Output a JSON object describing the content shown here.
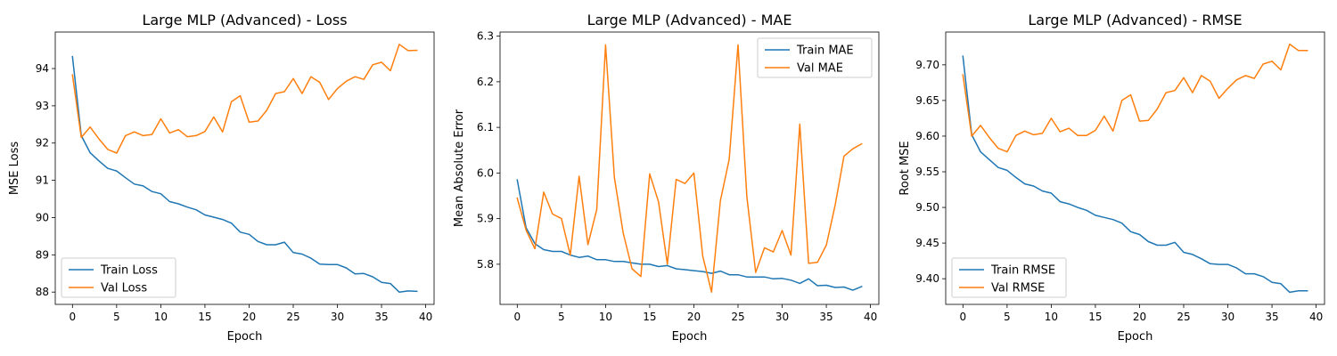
{
  "chart_data": [
    {
      "type": "line",
      "title": "Large MLP (Advanced) - Loss",
      "xlabel": "Epoch",
      "ylabel": "MSE Loss",
      "xlim": [
        -1.95,
        40.95
      ],
      "ylim": [
        87.67,
        94.98
      ],
      "xticks": [
        0,
        5,
        10,
        15,
        20,
        25,
        30,
        35,
        40
      ],
      "xtick_labels": [
        "0",
        "5",
        "10",
        "15",
        "20",
        "25",
        "30",
        "35",
        "40"
      ],
      "yticks": [
        88,
        89,
        90,
        91,
        92,
        93,
        94
      ],
      "ytick_labels": [
        "88",
        "89",
        "90",
        "91",
        "92",
        "93",
        "94"
      ],
      "grid": false,
      "legend_position": "lower-left",
      "colors": [
        "#1f77b4",
        "#ff7f0e"
      ],
      "x": [
        0,
        1,
        2,
        3,
        4,
        5,
        6,
        7,
        8,
        9,
        10,
        11,
        12,
        13,
        14,
        15,
        16,
        17,
        18,
        19,
        20,
        21,
        22,
        23,
        24,
        25,
        26,
        27,
        28,
        29,
        30,
        31,
        32,
        33,
        34,
        35,
        36,
        37,
        38,
        39
      ],
      "series": [
        {
          "name": "Train Loss",
          "values": [
            94.32,
            92.2,
            91.74,
            91.52,
            91.32,
            91.25,
            91.07,
            90.9,
            90.85,
            90.7,
            90.64,
            90.43,
            90.37,
            90.28,
            90.21,
            90.07,
            90.01,
            89.95,
            89.85,
            89.61,
            89.55,
            89.36,
            89.27,
            89.27,
            89.34,
            89.06,
            89.02,
            88.91,
            88.75,
            88.74,
            88.74,
            88.65,
            88.49,
            88.5,
            88.41,
            88.26,
            88.23,
            88.0,
            88.03,
            88.02
          ]
        },
        {
          "name": "Val Loss",
          "values": [
            93.83,
            92.15,
            92.43,
            92.11,
            91.83,
            91.73,
            92.2,
            92.3,
            92.2,
            92.23,
            92.65,
            92.27,
            92.36,
            92.17,
            92.2,
            92.31,
            92.7,
            92.3,
            93.11,
            93.27,
            92.56,
            92.59,
            92.88,
            93.33,
            93.38,
            93.73,
            93.33,
            93.78,
            93.63,
            93.17,
            93.46,
            93.66,
            93.78,
            93.71,
            94.1,
            94.17,
            93.94,
            94.65,
            94.48,
            94.49
          ]
        }
      ]
    },
    {
      "type": "line",
      "title": "Large MLP (Advanced) - MAE",
      "xlabel": "Epoch",
      "ylabel": "Mean Absolute Error",
      "xlim": [
        -1.95,
        40.95
      ],
      "ylim": [
        5.712,
        6.309
      ],
      "xticks": [
        0,
        5,
        10,
        15,
        20,
        25,
        30,
        35,
        40
      ],
      "xtick_labels": [
        "0",
        "5",
        "10",
        "15",
        "20",
        "25",
        "30",
        "35",
        "40"
      ],
      "yticks": [
        5.8,
        5.9,
        6.0,
        6.1,
        6.2,
        6.3
      ],
      "ytick_labels": [
        "5.8",
        "5.9",
        "6.0",
        "6.1",
        "6.2",
        "6.3"
      ],
      "grid": false,
      "legend_position": "top-right",
      "colors": [
        "#1f77b4",
        "#ff7f0e"
      ],
      "x": [
        0,
        1,
        2,
        3,
        4,
        5,
        6,
        7,
        8,
        9,
        10,
        11,
        12,
        13,
        14,
        15,
        16,
        17,
        18,
        19,
        20,
        21,
        22,
        23,
        24,
        25,
        26,
        27,
        28,
        29,
        30,
        31,
        32,
        33,
        34,
        35,
        36,
        37,
        38,
        39
      ],
      "series": [
        {
          "name": "Train MAE",
          "values": [
            5.985,
            5.88,
            5.845,
            5.832,
            5.828,
            5.828,
            5.82,
            5.815,
            5.818,
            5.81,
            5.81,
            5.806,
            5.806,
            5.803,
            5.8,
            5.8,
            5.795,
            5.797,
            5.79,
            5.788,
            5.786,
            5.784,
            5.78,
            5.785,
            5.777,
            5.777,
            5.772,
            5.772,
            5.772,
            5.768,
            5.769,
            5.765,
            5.758,
            5.768,
            5.753,
            5.754,
            5.749,
            5.75,
            5.743,
            5.751
          ]
        },
        {
          "name": "Val MAE",
          "values": [
            5.945,
            5.875,
            5.834,
            5.958,
            5.91,
            5.9,
            5.82,
            5.993,
            5.843,
            5.92,
            6.281,
            5.99,
            5.868,
            5.79,
            5.773,
            5.998,
            5.937,
            5.8,
            5.986,
            5.977,
            6.0,
            5.818,
            5.739,
            5.939,
            6.03,
            6.281,
            5.948,
            5.782,
            5.836,
            5.827,
            5.874,
            5.82,
            6.107,
            5.802,
            5.804,
            5.842,
            5.93,
            6.037,
            6.053,
            6.064
          ]
        }
      ]
    },
    {
      "type": "line",
      "title": "Large MLP (Advanced) - RMSE",
      "xlabel": "Epoch",
      "ylabel": "Root MSE",
      "xlim": [
        -1.95,
        40.95
      ],
      "ylim": [
        9.364,
        9.746
      ],
      "xticks": [
        0,
        5,
        10,
        15,
        20,
        25,
        30,
        35,
        40
      ],
      "xtick_labels": [
        "0",
        "5",
        "10",
        "15",
        "20",
        "25",
        "30",
        "35",
        "40"
      ],
      "yticks": [
        9.4,
        9.45,
        9.5,
        9.55,
        9.6,
        9.65,
        9.7
      ],
      "ytick_labels": [
        "9.40",
        "9.45",
        "9.50",
        "9.55",
        "9.60",
        "9.65",
        "9.70"
      ],
      "grid": false,
      "legend_position": "lower-left",
      "colors": [
        "#1f77b4",
        "#ff7f0e"
      ],
      "x": [
        0,
        1,
        2,
        3,
        4,
        5,
        6,
        7,
        8,
        9,
        10,
        11,
        12,
        13,
        14,
        15,
        16,
        17,
        18,
        19,
        20,
        21,
        22,
        23,
        24,
        25,
        26,
        27,
        28,
        29,
        30,
        31,
        32,
        33,
        34,
        35,
        36,
        37,
        38,
        39
      ],
      "series": [
        {
          "name": "Train RMSE",
          "values": [
            9.712,
            9.602,
            9.578,
            9.567,
            9.556,
            9.552,
            9.542,
            9.533,
            9.53,
            9.523,
            9.52,
            9.508,
            9.505,
            9.5,
            9.496,
            9.489,
            9.486,
            9.483,
            9.478,
            9.466,
            9.462,
            9.452,
            9.447,
            9.447,
            9.451,
            9.437,
            9.434,
            9.428,
            9.421,
            9.42,
            9.42,
            9.415,
            9.407,
            9.407,
            9.403,
            9.395,
            9.393,
            9.381,
            9.383,
            9.383
          ]
        },
        {
          "name": "Val RMSE",
          "values": [
            9.686,
            9.6,
            9.615,
            9.598,
            9.583,
            9.578,
            9.601,
            9.607,
            9.602,
            9.604,
            9.625,
            9.606,
            9.611,
            9.601,
            9.601,
            9.608,
            9.628,
            9.607,
            9.65,
            9.658,
            9.621,
            9.622,
            9.638,
            9.661,
            9.664,
            9.682,
            9.661,
            9.685,
            9.677,
            9.653,
            9.667,
            9.679,
            9.685,
            9.681,
            9.701,
            9.705,
            9.693,
            9.729,
            9.72,
            9.72
          ]
        }
      ]
    }
  ]
}
